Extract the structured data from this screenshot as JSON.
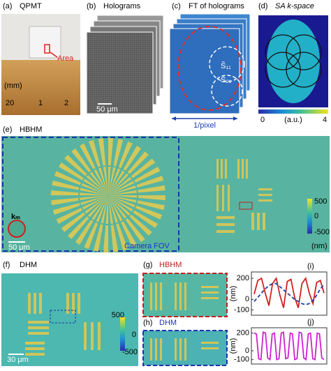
{
  "panels": {
    "a": {
      "label": "(a)",
      "title": "QPMT",
      "area": "Area",
      "unit": "(mm)",
      "ruler": [
        "20",
        "1",
        "2"
      ]
    },
    "b": {
      "label": "(b)",
      "title": "Holograms",
      "scale": "50 μm"
    },
    "c": {
      "label": "(c)",
      "title": "FT of holograms",
      "s11": "S̃₁₁",
      "s21": "S̃₂₁",
      "axis": "1/pixel"
    },
    "d": {
      "label": "(d)",
      "title": "SA k-space",
      "cbar": [
        "0",
        "(a.u.)",
        "4"
      ]
    },
    "e": {
      "label": "(e)",
      "title": "HBHM",
      "km": "kₘ",
      "scale": "50 μm",
      "fov": "Camera FOV",
      "cbar": [
        "500",
        "0",
        "-500"
      ],
      "unit": "(nm)"
    },
    "f": {
      "label": "(f)",
      "title": "DHM",
      "scale": "30 μm",
      "cbar": [
        "500",
        "0",
        "-500"
      ]
    },
    "g": {
      "label": "(g)",
      "title": "HBHM"
    },
    "h": {
      "label": "(h)",
      "title": "DHM"
    }
  },
  "chart_data": [
    {
      "type": "line",
      "label": "(i)",
      "ylabel": "(nm)",
      "ylim": [
        -150,
        260
      ],
      "yticks": [
        200,
        0,
        -100
      ],
      "series": [
        {
          "color": "#d42020",
          "dash": false,
          "values": [
            50,
            180,
            200,
            60,
            -60,
            150,
            200,
            40,
            -80,
            170,
            190,
            20,
            -80,
            150,
            200,
            60,
            -40,
            160,
            180,
            60
          ]
        },
        {
          "color": "#1f3fa8",
          "dash": true,
          "values": [
            -20,
            20,
            60,
            100,
            130,
            150,
            150,
            120,
            90,
            60,
            30,
            0,
            -20,
            -40,
            -50,
            -40,
            -10,
            40,
            100,
            140
          ]
        }
      ]
    },
    {
      "type": "line",
      "label": "(j)",
      "ylabel": "(nm)",
      "ylim": [
        -150,
        260
      ],
      "yticks": [
        200,
        0,
        -100
      ],
      "series": [
        {
          "color": "#d020d0",
          "dash": false,
          "values": [
            200,
            190,
            -90,
            -100,
            210,
            200,
            -80,
            -100,
            190,
            200,
            -100,
            -90,
            200,
            210,
            -90,
            -80,
            200,
            190,
            -100,
            -90,
            210,
            200,
            -80,
            -100,
            190,
            200,
            -90,
            -100,
            200,
            190,
            -80,
            -100
          ]
        }
      ]
    }
  ]
}
